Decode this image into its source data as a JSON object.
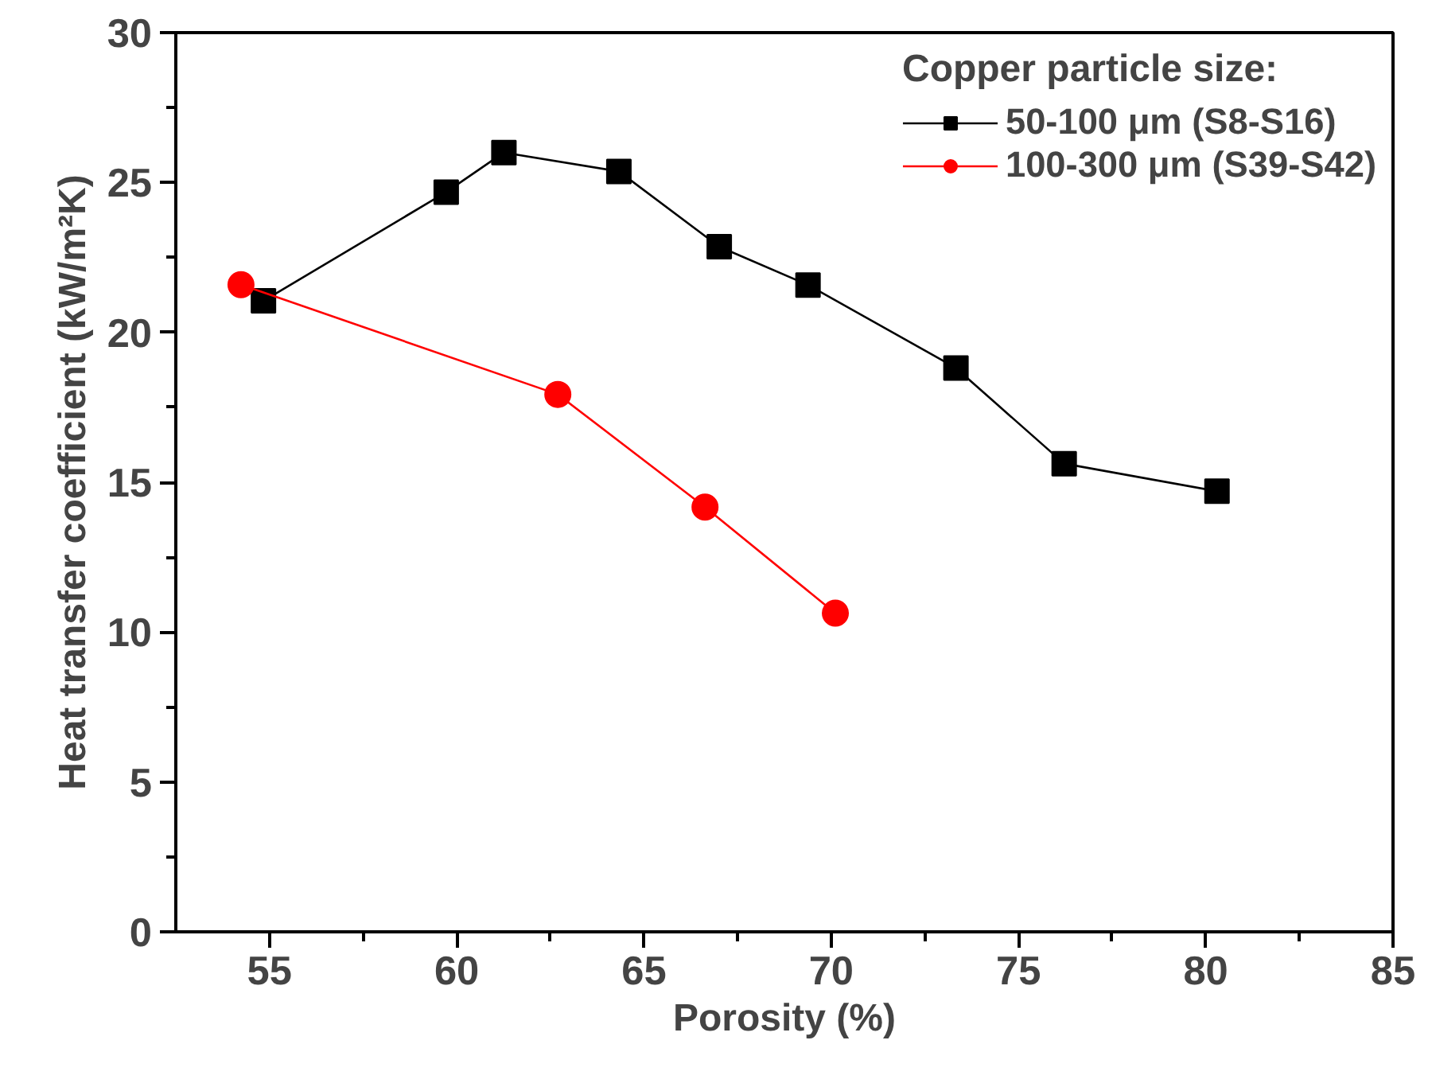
{
  "chart_data": {
    "type": "line",
    "xlabel": "Porosity (%)",
    "ylabel": "Heat transfer coefficient (kW/m²K)",
    "legend_title": "Copper particle size:",
    "legend": "top right",
    "grid": false,
    "xlim": [
      52.5,
      85
    ],
    "ylim": [
      0,
      30
    ],
    "xticks": [
      55,
      60,
      65,
      70,
      75,
      80,
      85
    ],
    "yticks": [
      0,
      5,
      10,
      15,
      20,
      25,
      30
    ],
    "series": [
      {
        "name": "50-100 μm (S8-S16)",
        "color": "#000000",
        "marker": "square",
        "x": [
          54.84,
          59.72,
          61.26,
          64.33,
          67.01,
          69.38,
          73.33,
          76.22,
          80.3
        ],
        "values": [
          21.05,
          24.68,
          26.0,
          25.37,
          22.86,
          21.58,
          18.81,
          15.62,
          14.7
        ]
      },
      {
        "name": "100-300 μm (S39-S42)",
        "color": "#ff0000",
        "marker": "circle",
        "x": [
          54.24,
          62.7,
          66.63,
          70.11
        ],
        "values": [
          21.59,
          17.93,
          14.17,
          10.63
        ]
      }
    ]
  }
}
